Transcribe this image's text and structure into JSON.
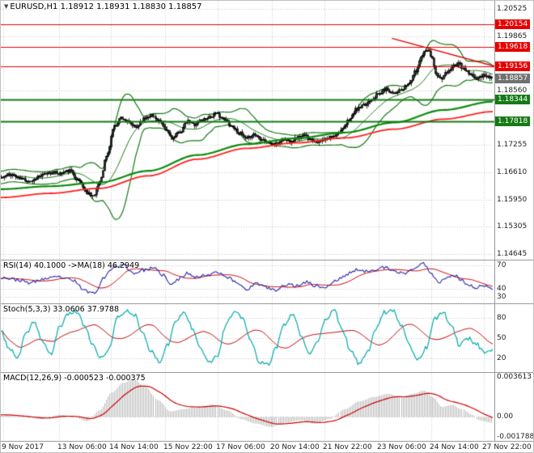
{
  "window": {
    "bg": "#ffffff",
    "grid_color": "#c4c4c4",
    "separator_color": "#9a9a9a"
  },
  "title": {
    "marker": "▼",
    "text": "EURUSD,H1  1.18912 1.18931 1.18830 1.18857"
  },
  "x_axis": {
    "labels": [
      "9 Nov 2017",
      "13 Nov 06:00",
      "14 Nov 14:00",
      "15 Nov 22:00",
      "17 Nov 06:00",
      "20 Nov 14:00",
      "21 Nov 22:00",
      "23 Nov 06:00",
      "24 Nov 14:00",
      "27 Nov 22:00"
    ],
    "fracs": [
      0.005,
      0.118,
      0.224,
      0.334,
      0.441,
      0.551,
      0.658,
      0.768,
      0.875,
      0.982
    ]
  },
  "chart_data": [
    {
      "type": "candlestick",
      "name": "price-panel",
      "symbol": "EURUSD",
      "timeframe": "H1",
      "ohlc": {
        "open": 1.18912,
        "high": 1.18931,
        "low": 1.1883,
        "close": 1.18857
      },
      "ylim": [
        1.20719,
        1.14509
      ],
      "y_ticks": [
        "1.20525",
        "1.19865",
        "1.18560",
        "1.17255",
        "1.16610",
        "1.15950",
        "1.15305",
        "1.14645"
      ],
      "levels": [
        {
          "price": 1.20154,
          "label": "1.20154",
          "color": "#e60000",
          "width": 1
        },
        {
          "price": 1.19618,
          "label": "1.19618",
          "color": "#e60000",
          "width": 1
        },
        {
          "price": 1.19156,
          "label": "1.19156",
          "color": "#e60000",
          "width": 1
        },
        {
          "price": 1.18344,
          "label": "1.18344",
          "color": "#157a15",
          "width": 2
        },
        {
          "price": 1.17818,
          "label": "1.17818",
          "color": "#157a15",
          "width": 2
        }
      ],
      "current_price": {
        "value": 1.18857,
        "label": "1.18857",
        "color": "#707070"
      },
      "trendline": {
        "x": [
          0.795,
          1.0
        ],
        "price": [
          1.1982,
          1.1915
        ],
        "color": "#e60000"
      },
      "bars": 300,
      "candle_color": "#000000",
      "bollinger": {
        "period": 20,
        "deviation": 2.0,
        "color": "#157a15"
      },
      "ma_red_color": "#ff2020",
      "ma_green_color": "#0c8a0c",
      "close_path": [
        [
          0,
          1.1648
        ],
        [
          0.02,
          1.1656
        ],
        [
          0.04,
          1.1645
        ],
        [
          0.06,
          1.164
        ],
        [
          0.08,
          1.1652
        ],
        [
          0.1,
          1.166
        ],
        [
          0.12,
          1.1658
        ],
        [
          0.14,
          1.1664
        ],
        [
          0.16,
          1.164
        ],
        [
          0.175,
          1.1612
        ],
        [
          0.19,
          1.1605
        ],
        [
          0.2,
          1.1638
        ],
        [
          0.215,
          1.17
        ],
        [
          0.23,
          1.177
        ],
        [
          0.245,
          1.1792
        ],
        [
          0.26,
          1.178
        ],
        [
          0.275,
          1.1768
        ],
        [
          0.29,
          1.1788
        ],
        [
          0.305,
          1.1798
        ],
        [
          0.32,
          1.1786
        ],
        [
          0.335,
          1.1762
        ],
        [
          0.35,
          1.1742
        ],
        [
          0.365,
          1.1758
        ],
        [
          0.38,
          1.1782
        ],
        [
          0.395,
          1.1776
        ],
        [
          0.41,
          1.1786
        ],
        [
          0.425,
          1.1794
        ],
        [
          0.44,
          1.18
        ],
        [
          0.455,
          1.1786
        ],
        [
          0.47,
          1.1772
        ],
        [
          0.485,
          1.1755
        ],
        [
          0.5,
          1.174
        ],
        [
          0.515,
          1.1752
        ],
        [
          0.53,
          1.1742
        ],
        [
          0.545,
          1.1732
        ],
        [
          0.56,
          1.1728
        ],
        [
          0.575,
          1.174
        ],
        [
          0.59,
          1.1736
        ],
        [
          0.605,
          1.1744
        ],
        [
          0.62,
          1.1748
        ],
        [
          0.635,
          1.1738
        ],
        [
          0.65,
          1.1734
        ],
        [
          0.665,
          1.174
        ],
        [
          0.68,
          1.175
        ],
        [
          0.695,
          1.1762
        ],
        [
          0.71,
          1.1788
        ],
        [
          0.725,
          1.1812
        ],
        [
          0.74,
          1.182
        ],
        [
          0.755,
          1.1836
        ],
        [
          0.77,
          1.1848
        ],
        [
          0.785,
          1.186
        ],
        [
          0.8,
          1.1852
        ],
        [
          0.815,
          1.1856
        ],
        [
          0.83,
          1.1872
        ],
        [
          0.845,
          1.1902
        ],
        [
          0.858,
          1.1942
        ],
        [
          0.868,
          1.1958
        ],
        [
          0.878,
          1.194
        ],
        [
          0.888,
          1.1892
        ],
        [
          0.898,
          1.1884
        ],
        [
          0.91,
          1.19
        ],
        [
          0.922,
          1.1916
        ],
        [
          0.934,
          1.192
        ],
        [
          0.946,
          1.1905
        ],
        [
          0.958,
          1.1892
        ],
        [
          0.97,
          1.1886
        ],
        [
          0.985,
          1.1894
        ],
        [
          1,
          1.18857
        ]
      ],
      "ma_red": [
        [
          0,
          1.16
        ],
        [
          0.1,
          1.161
        ],
        [
          0.2,
          1.1622
        ],
        [
          0.3,
          1.1652
        ],
        [
          0.4,
          1.1692
        ],
        [
          0.5,
          1.1718
        ],
        [
          0.6,
          1.1731
        ],
        [
          0.7,
          1.1743
        ],
        [
          0.8,
          1.1764
        ],
        [
          0.9,
          1.1788
        ],
        [
          1,
          1.1806
        ]
      ],
      "ma_green": [
        [
          0,
          1.162
        ],
        [
          0.1,
          1.1627
        ],
        [
          0.2,
          1.1636
        ],
        [
          0.3,
          1.1664
        ],
        [
          0.4,
          1.1702
        ],
        [
          0.5,
          1.1728
        ],
        [
          0.6,
          1.1742
        ],
        [
          0.7,
          1.1756
        ],
        [
          0.8,
          1.178
        ],
        [
          0.9,
          1.181
        ],
        [
          1,
          1.183
        ]
      ]
    },
    {
      "type": "line",
      "name": "rsi-panel",
      "title": "RSI(14) 40.1000  ->MA(18) 46.2949",
      "value": 40.1,
      "ma_value": 46.2949,
      "ylim": [
        76,
        22
      ],
      "levels": [
        70,
        40,
        30
      ],
      "line_color": "#2626a8",
      "ma_color": "#cc0000",
      "path": [
        [
          0,
          55
        ],
        [
          0.03,
          52
        ],
        [
          0.06,
          48
        ],
        [
          0.09,
          53
        ],
        [
          0.12,
          55
        ],
        [
          0.15,
          50
        ],
        [
          0.17,
          38
        ],
        [
          0.19,
          35
        ],
        [
          0.21,
          55
        ],
        [
          0.23,
          68
        ],
        [
          0.25,
          70
        ],
        [
          0.27,
          60
        ],
        [
          0.29,
          64
        ],
        [
          0.31,
          66
        ],
        [
          0.33,
          58
        ],
        [
          0.345,
          45
        ],
        [
          0.36,
          52
        ],
        [
          0.38,
          60
        ],
        [
          0.4,
          55
        ],
        [
          0.42,
          58
        ],
        [
          0.44,
          62
        ],
        [
          0.46,
          55
        ],
        [
          0.48,
          48
        ],
        [
          0.5,
          40
        ],
        [
          0.52,
          47
        ],
        [
          0.54,
          42
        ],
        [
          0.56,
          38
        ],
        [
          0.58,
          46
        ],
        [
          0.6,
          44
        ],
        [
          0.62,
          49
        ],
        [
          0.64,
          44
        ],
        [
          0.66,
          42
        ],
        [
          0.68,
          50
        ],
        [
          0.7,
          57
        ],
        [
          0.72,
          64
        ],
        [
          0.74,
          62
        ],
        [
          0.76,
          65
        ],
        [
          0.78,
          67
        ],
        [
          0.8,
          62
        ],
        [
          0.82,
          60
        ],
        [
          0.84,
          66
        ],
        [
          0.86,
          72
        ],
        [
          0.875,
          60
        ],
        [
          0.89,
          48
        ],
        [
          0.905,
          55
        ],
        [
          0.92,
          58
        ],
        [
          0.935,
          52
        ],
        [
          0.95,
          45
        ],
        [
          0.965,
          42
        ],
        [
          0.98,
          44
        ],
        [
          1,
          40.1
        ]
      ]
    },
    {
      "type": "line2",
      "name": "stochastic-panel",
      "title": "Stoch(5,3,3) 33.0606 37.9788",
      "k_value": 33.0606,
      "d_value": 37.9788,
      "ylim": [
        100,
        0
      ],
      "levels": [
        80,
        50,
        20
      ],
      "k_color": "#00a8a8",
      "d_color": "#c00000",
      "k_values": [
        60,
        35,
        20,
        55,
        75,
        45,
        25,
        65,
        85,
        90,
        70,
        40,
        20,
        35,
        80,
        90,
        85,
        60,
        30,
        15,
        40,
        75,
        88,
        65,
        35,
        15,
        25,
        70,
        88,
        80,
        45,
        15,
        10,
        35,
        70,
        85,
        55,
        25,
        45,
        80,
        90,
        60,
        30,
        12,
        30,
        65,
        88,
        92,
        70,
        40,
        18,
        35,
        78,
        88,
        70,
        40,
        50,
        42,
        30,
        33
      ]
    },
    {
      "type": "macd",
      "name": "macd-panel",
      "title": "MACD(12,26,9) -0.000523 -0.000375",
      "macd_value": -0.000523,
      "signal_value": -0.000375,
      "ylim": [
        0.003978,
        -0.002156
      ],
      "ticks": [
        {
          "label": "0.003613",
          "value": 0.003613
        },
        {
          "label": "0.00",
          "value": 0
        },
        {
          "label": "-0.001788",
          "value": -0.001788
        }
      ],
      "hist_color": "#b8b8b8",
      "signal_color": "#cc0000",
      "path": [
        [
          0,
          0.0002
        ],
        [
          0.04,
          0
        ],
        [
          0.08,
          -0.0002
        ],
        [
          0.12,
          0.0002
        ],
        [
          0.15,
          0
        ],
        [
          0.175,
          -0.0004
        ],
        [
          0.2,
          0.0006
        ],
        [
          0.225,
          0.0022
        ],
        [
          0.25,
          0.0031
        ],
        [
          0.27,
          0.0034
        ],
        [
          0.295,
          0.0027
        ],
        [
          0.32,
          0.0015
        ],
        [
          0.345,
          0.0005
        ],
        [
          0.37,
          0.0007
        ],
        [
          0.4,
          0.0009
        ],
        [
          0.43,
          0.0011
        ],
        [
          0.46,
          0.0006
        ],
        [
          0.49,
          -0.0002
        ],
        [
          0.52,
          -0.0006
        ],
        [
          0.55,
          -0.0009
        ],
        [
          0.58,
          -0.0005
        ],
        [
          0.61,
          -0.0003
        ],
        [
          0.64,
          -0.0006
        ],
        [
          0.67,
          -0.0002
        ],
        [
          0.7,
          0.0007
        ],
        [
          0.73,
          0.0014
        ],
        [
          0.76,
          0.0018
        ],
        [
          0.79,
          0.0021
        ],
        [
          0.815,
          0.0018
        ],
        [
          0.84,
          0.0021
        ],
        [
          0.862,
          0.0024
        ],
        [
          0.88,
          0.0018
        ],
        [
          0.9,
          0.0009
        ],
        [
          0.92,
          0.0011
        ],
        [
          0.94,
          0.0007
        ],
        [
          0.96,
          0.0002
        ],
        [
          0.975,
          -0.0003
        ],
        [
          1,
          -0.000523
        ]
      ]
    }
  ]
}
